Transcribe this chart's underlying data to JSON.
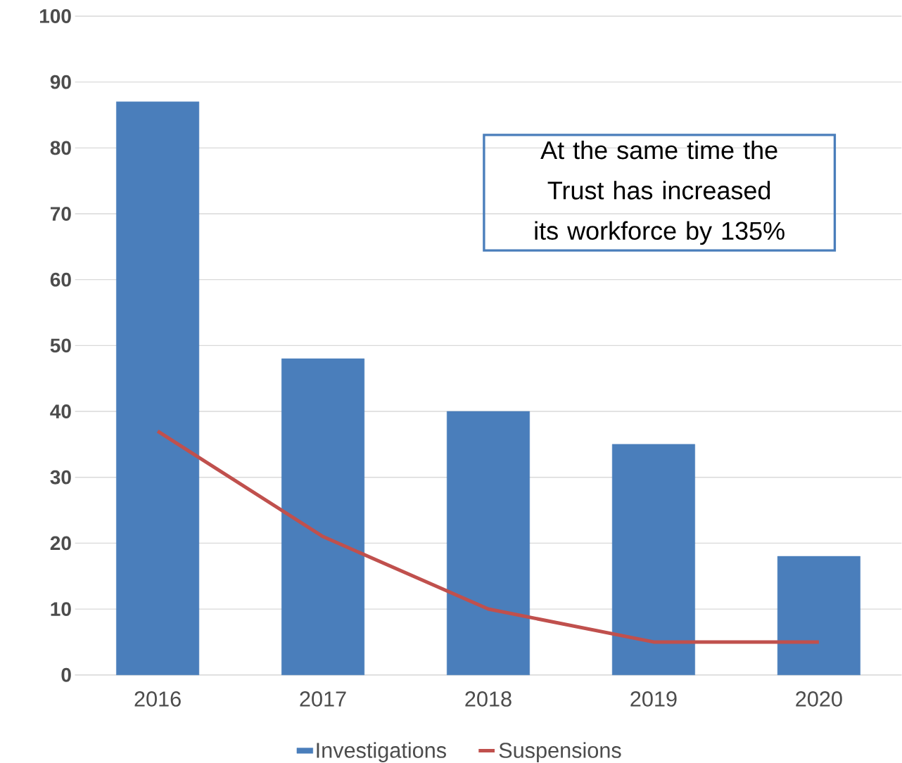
{
  "chart_data": {
    "type": "bar",
    "categories": [
      "2016",
      "2017",
      "2018",
      "2019",
      "2020"
    ],
    "series": [
      {
        "name": "Investigations",
        "color": "#4a7ebb",
        "values": [
          87,
          48,
          40,
          35,
          18
        ]
      },
      {
        "name": "Suspensions",
        "type": "line",
        "color": "#c0504d",
        "values": [
          37,
          21,
          10,
          5,
          5
        ]
      }
    ],
    "ylim": [
      0,
      100
    ],
    "yticks": [
      0,
      10,
      20,
      30,
      40,
      50,
      60,
      70,
      80,
      90,
      100
    ],
    "grid": "y",
    "legend": "bottom",
    "annotations": [
      "At the same time the Trust has increased its workforce by 135%"
    ]
  }
}
